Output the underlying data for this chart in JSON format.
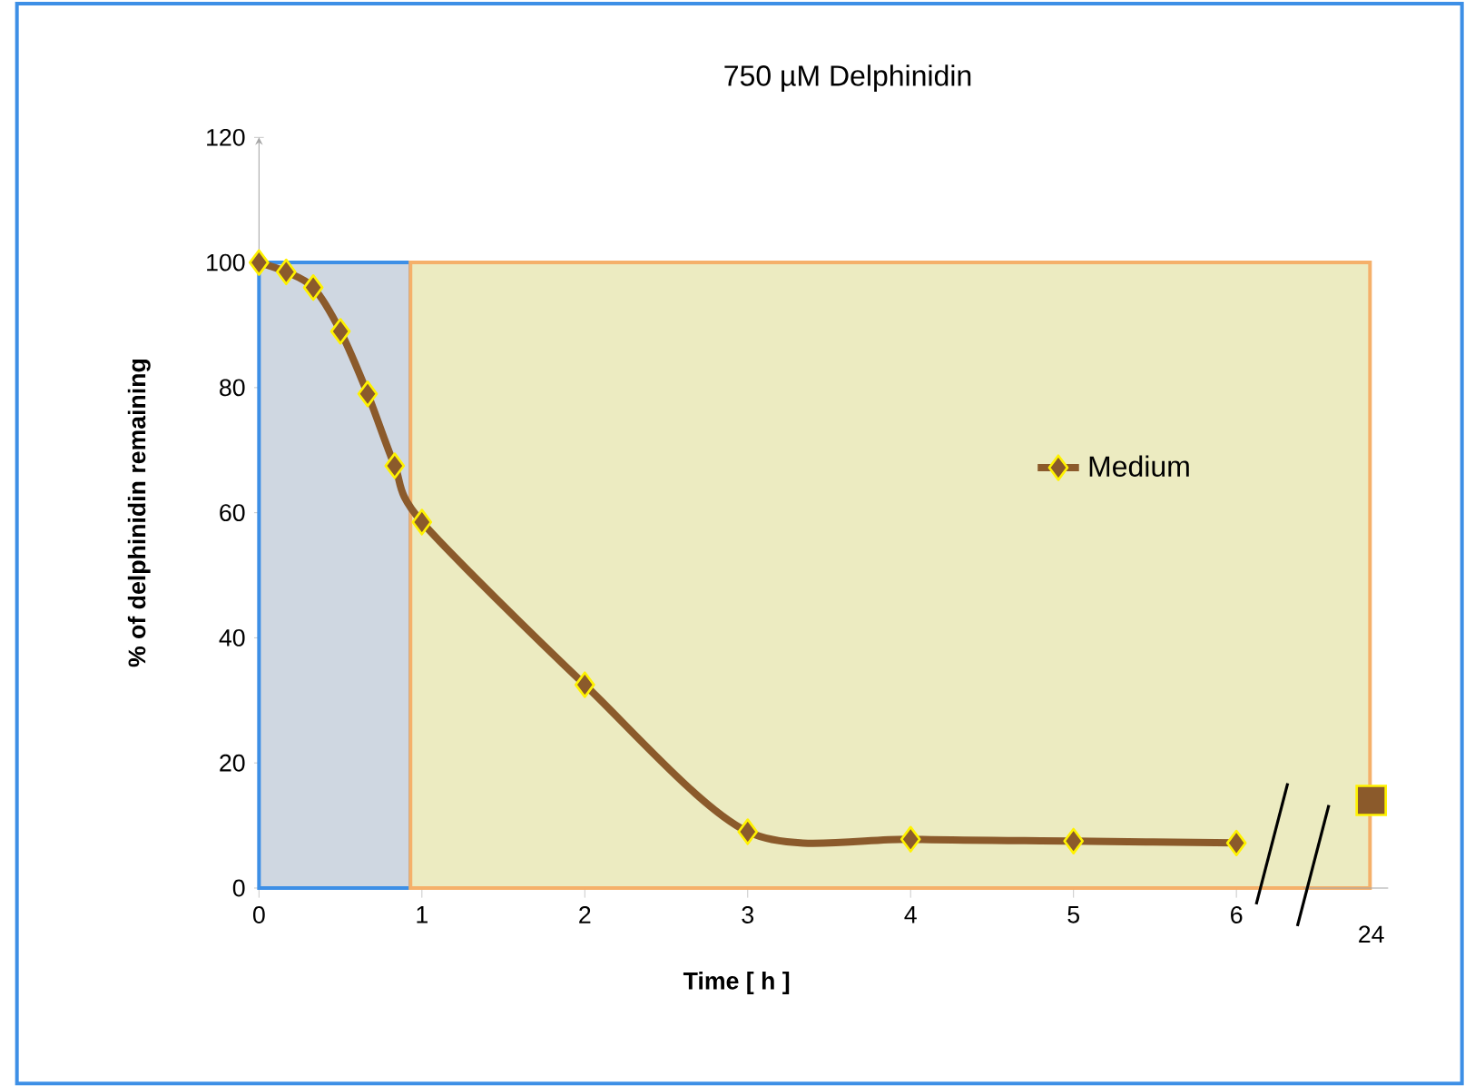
{
  "chart_data": [
    {
      "type": "line",
      "title": "750 µM Delphinidin",
      "xlabel": "Time [ h ]",
      "ylabel": "% of delphinidin remaining",
      "xlim": [
        0,
        6.82
      ],
      "xticks": [
        0,
        1,
        2,
        3,
        4,
        5,
        6
      ],
      "ylim": [
        0,
        120
      ],
      "yticks": [
        0,
        20,
        40,
        60,
        80,
        100,
        120
      ],
      "series": [
        {
          "name": "Medium",
          "color": "#8b5a2b",
          "marker": "diamond",
          "x": [
            0,
            0.167,
            0.333,
            0.5,
            0.667,
            0.833,
            1,
            2,
            3,
            4,
            5,
            6
          ],
          "values": [
            100,
            98.5,
            96,
            89,
            79,
            67.5,
            58.5,
            32.5,
            9,
            7.8,
            7.5,
            7.2
          ]
        }
      ],
      "bands": [
        {
          "axis": "x",
          "from": 0,
          "to": 0.93,
          "color": "#cfd7e1"
        },
        {
          "axis": "x",
          "from": 0.93,
          "to": 6.82,
          "color": "#ecebc1"
        }
      ],
      "legend": "right",
      "grid": false
    },
    {
      "type": "scatter",
      "categories": [
        "24"
      ],
      "ylim": [
        0,
        120
      ],
      "tick_labels": "x",
      "series": [
        {
          "color": "#8b5a2b",
          "marker": "square",
          "values": [
            14
          ]
        }
      ]
    }
  ]
}
